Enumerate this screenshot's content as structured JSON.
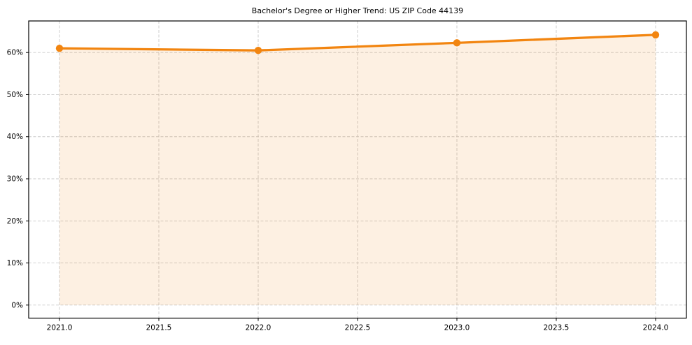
{
  "chart_data": {
    "type": "area",
    "title": "Bachelor's Degree or Higher Trend: US ZIP Code 44139",
    "x": [
      2021,
      2022,
      2023,
      2024
    ],
    "series": [
      {
        "name": "Bachelor's Degree or Higher (%)",
        "values": [
          61.0,
          60.5,
          62.3,
          64.2
        ]
      }
    ],
    "x_tick_labels": [
      "2021.0",
      "2021.5",
      "2022.0",
      "2022.5",
      "2023.0",
      "2023.5",
      "2024.0"
    ],
    "x_tick_values": [
      2021.0,
      2021.5,
      2022.0,
      2022.5,
      2023.0,
      2023.5,
      2024.0
    ],
    "y_tick_labels": [
      "0%",
      "10%",
      "20%",
      "30%",
      "40%",
      "50%",
      "60%"
    ],
    "y_tick_values": [
      0,
      10,
      20,
      30,
      40,
      50,
      60
    ],
    "xlim": [
      2020.845,
      2024.155
    ],
    "ylim": [
      -3.1,
      67.5
    ],
    "fill_baseline": 0,
    "grid": true,
    "grid_style": "dashed",
    "legend_position": "none",
    "colors": {
      "line": "#f28510",
      "marker": "#f28510",
      "fill": "rgba(242, 133, 16, 0.12)",
      "grid": "#c9c9c9",
      "axis": "#000000",
      "text": "#000000",
      "background": "#ffffff"
    }
  }
}
